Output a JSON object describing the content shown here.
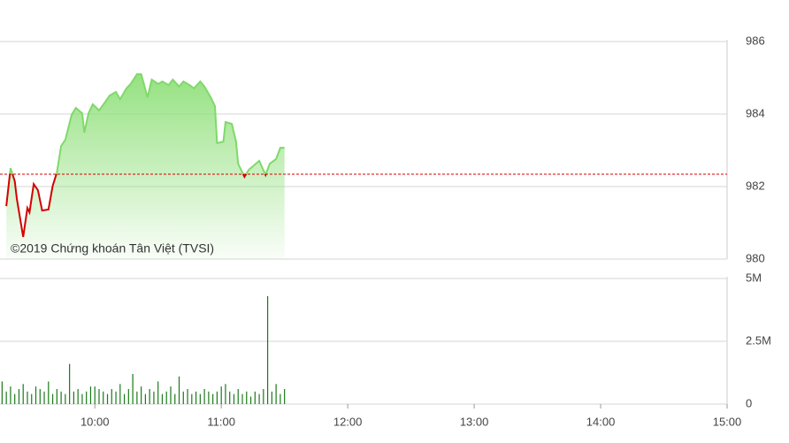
{
  "chart_data": [
    {
      "type": "line",
      "watermark": "©2019 Chứng khoán Tân Việt (TVSI)",
      "x": [
        558,
        560,
        562,
        563,
        566,
        568,
        569,
        571,
        573,
        575,
        578,
        580,
        582,
        584,
        586,
        589,
        591,
        594,
        595,
        597,
        599,
        602,
        605,
        607,
        610,
        612,
        615,
        617,
        620,
        622,
        625,
        627,
        630,
        632,
        635,
        637,
        640,
        642,
        645,
        647,
        650,
        652,
        655,
        657,
        658,
        661,
        662,
        665,
        667,
        668,
        671,
        673,
        676,
        678,
        681,
        683,
        686,
        688,
        690
      ],
      "values": [
        981.46,
        982.51,
        982.15,
        981.66,
        980.61,
        981.41,
        981.29,
        982.07,
        981.9,
        981.34,
        981.37,
        982.02,
        982.39,
        983.12,
        983.29,
        983.98,
        984.17,
        984.02,
        983.49,
        984.02,
        984.27,
        984.1,
        984.34,
        984.51,
        984.61,
        984.41,
        984.71,
        984.83,
        985.1,
        985.1,
        984.46,
        984.95,
        984.83,
        984.9,
        984.8,
        984.95,
        984.76,
        984.9,
        984.8,
        984.71,
        984.9,
        984.76,
        984.46,
        984.22,
        983.2,
        983.24,
        983.78,
        983.73,
        983.24,
        982.63,
        982.27,
        982.46,
        982.61,
        982.71,
        982.32,
        982.63,
        982.76,
        983.07,
        983.07
      ],
      "reference": 982.34,
      "color_up": "#7fd96a",
      "color_down": "#d40000",
      "reference_color": "#d40000",
      "xlim": [
        555,
        900
      ],
      "ylim": [
        980,
        986
      ],
      "yticks": [
        980,
        982,
        984,
        986
      ],
      "grid": true
    },
    {
      "type": "bar",
      "x": [
        556,
        558,
        560,
        562,
        564,
        566,
        568,
        570,
        572,
        574,
        576,
        578,
        580,
        582,
        584,
        586,
        588,
        590,
        592,
        594,
        596,
        598,
        600,
        602,
        604,
        606,
        608,
        610,
        612,
        614,
        616,
        618,
        620,
        622,
        624,
        626,
        628,
        630,
        632,
        634,
        636,
        638,
        640,
        642,
        644,
        646,
        648,
        650,
        652,
        654,
        656,
        658,
        660,
        662,
        664,
        666,
        668,
        670,
        672,
        674,
        676,
        678,
        680,
        682,
        684,
        686,
        688,
        690
      ],
      "values": [
        0.9,
        0.5,
        0.7,
        0.4,
        0.6,
        0.8,
        0.5,
        0.4,
        0.7,
        0.6,
        0.5,
        0.9,
        0.4,
        0.6,
        0.5,
        0.4,
        1.6,
        0.5,
        0.6,
        0.4,
        0.5,
        0.7,
        0.7,
        0.6,
        0.5,
        0.4,
        0.6,
        0.5,
        0.8,
        0.4,
        0.6,
        1.2,
        0.5,
        0.7,
        0.4,
        0.6,
        0.5,
        0.9,
        0.4,
        0.5,
        0.7,
        0.4,
        1.1,
        0.5,
        0.6,
        0.4,
        0.5,
        0.4,
        0.6,
        0.5,
        0.4,
        0.5,
        0.7,
        0.8,
        0.5,
        0.4,
        0.6,
        0.4,
        0.5,
        0.3,
        0.5,
        0.4,
        0.6,
        4.3,
        0.5,
        0.8,
        0.4,
        0.6
      ],
      "color": "#1a7a1a",
      "xlim": [
        555,
        900
      ],
      "xticks": [
        {
          "value": 600,
          "label": "10:00"
        },
        {
          "value": 660,
          "label": "11:00"
        },
        {
          "value": 720,
          "label": "12:00"
        },
        {
          "value": 780,
          "label": "13:00"
        },
        {
          "value": 840,
          "label": "14:00"
        },
        {
          "value": 900,
          "label": "15:00"
        }
      ],
      "ylim": [
        0,
        5
      ],
      "yticks": [
        0,
        {
          "value": 2.5,
          "label": "2.5M"
        },
        {
          "value": 5,
          "label": "5M"
        }
      ],
      "grid": true
    }
  ]
}
